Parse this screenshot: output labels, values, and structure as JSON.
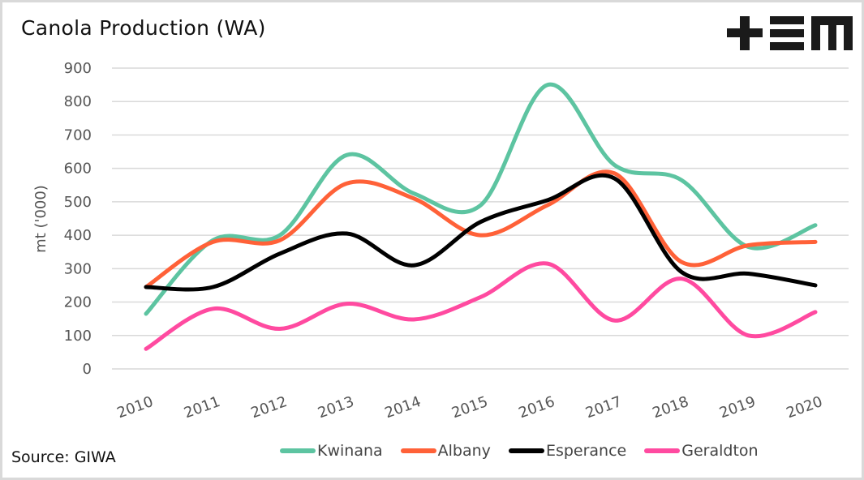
{
  "title": "Canola Production (WA)",
  "source": "Source: GIWA",
  "logo": {
    "name": "tem-logo",
    "text": "+EM"
  },
  "chart_data": {
    "type": "line",
    "title": "Canola Production (WA)",
    "xlabel": "",
    "ylabel": "mt ('000)",
    "ylim": [
      0,
      900
    ],
    "yticks": [
      "0",
      "100",
      "200",
      "300",
      "400",
      "500",
      "600",
      "700",
      "800",
      "900"
    ],
    "ytick_values": [
      0,
      100,
      200,
      300,
      400,
      500,
      600,
      700,
      800,
      900
    ],
    "categories": [
      "2010",
      "2011",
      "2012",
      "2013",
      "2014",
      "2015",
      "2016",
      "2017",
      "2018",
      "2019",
      "2020"
    ],
    "grid": true,
    "smooth": true,
    "legend_position": "bottom-right",
    "series": [
      {
        "name": "Kwinana",
        "color": "#5dc4a1",
        "values": [
          165,
          385,
          400,
          640,
          525,
          490,
          850,
          610,
          565,
          365,
          430
        ]
      },
      {
        "name": "Albany",
        "color": "#ff6138",
        "values": [
          245,
          380,
          385,
          555,
          510,
          400,
          490,
          585,
          320,
          370,
          380
        ]
      },
      {
        "name": "Esperance",
        "color": "#000000",
        "values": [
          245,
          245,
          345,
          405,
          310,
          440,
          505,
          570,
          290,
          285,
          250
        ]
      },
      {
        "name": "Geraldton",
        "color": "#ff4aa0",
        "values": [
          60,
          180,
          120,
          195,
          148,
          215,
          315,
          145,
          270,
          100,
          170
        ]
      }
    ]
  }
}
